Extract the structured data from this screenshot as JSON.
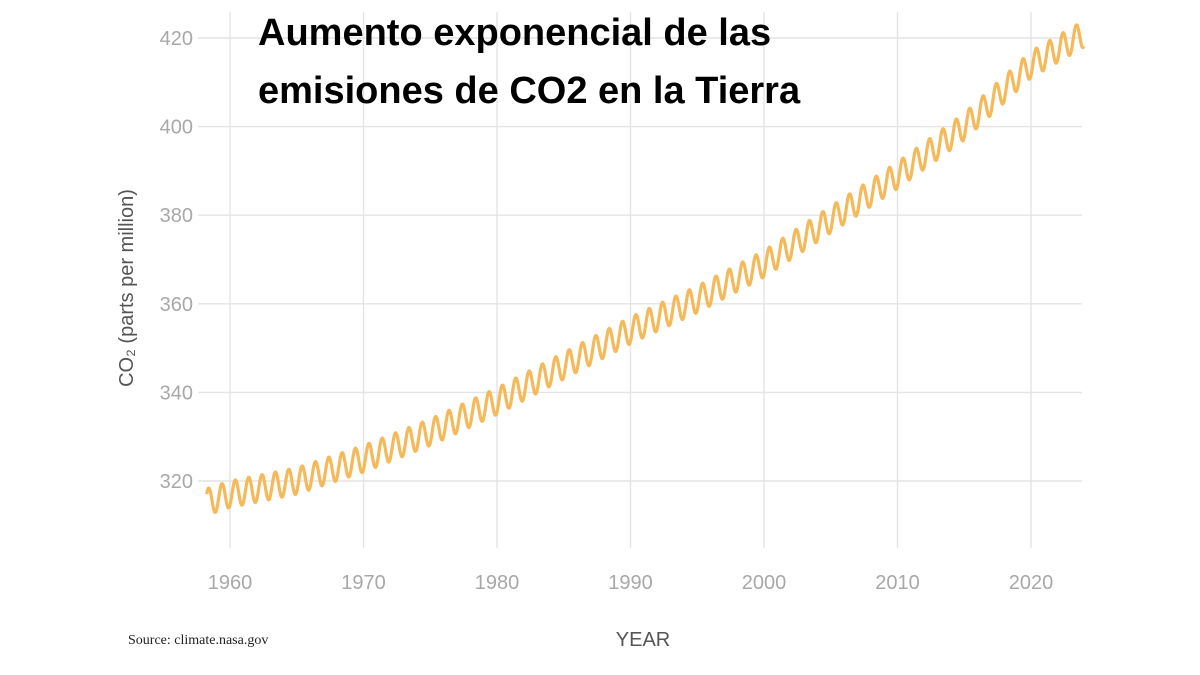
{
  "chart_data": {
    "type": "line",
    "title_lines": [
      "Aumento exponencial de las",
      "emisiones de CO2 en la Tierra"
    ],
    "ylabel": "CO₂ (parts per million)",
    "xlabel": "YEAR",
    "source": "Source: climate.nasa.gov",
    "xlim": [
      1958,
      2024
    ],
    "ylim": [
      300,
      425
    ],
    "x_ticks": [
      "1960",
      "1970",
      "1980",
      "1990",
      "2000",
      "2010",
      "2020"
    ],
    "y_ticks": [
      "320",
      "340",
      "360",
      "380",
      "400",
      "420"
    ],
    "grid": true,
    "line_color": "#f5b95a",
    "series": [
      {
        "x": [
          1958,
          1960,
          1965,
          1970,
          1975,
          1980,
          1985,
          1990,
          1995,
          2000,
          2005,
          2010,
          2015,
          2020,
          2024
        ],
        "values": [
          315,
          317,
          320,
          325,
          331,
          338,
          346,
          354,
          361,
          369,
          379,
          389,
          400,
          414,
          421
        ]
      }
    ],
    "seasonal_amplitude_ppm": 3
  }
}
